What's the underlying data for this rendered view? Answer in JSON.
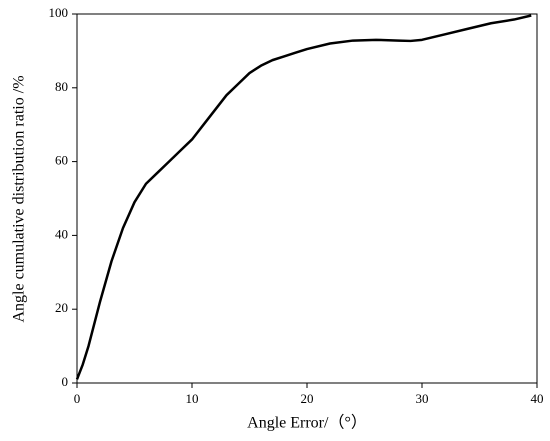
{
  "chart_data": {
    "type": "line",
    "x_label": "Angle Error/（°）",
    "y_label": "Angle cumulative distribution ratio /%",
    "x": [
      0,
      0.5,
      1,
      2,
      3,
      4,
      5,
      6,
      7,
      8,
      9,
      10,
      11,
      12,
      13,
      14,
      15,
      16,
      17,
      18,
      19,
      20,
      22,
      24,
      26,
      28,
      29,
      30,
      32,
      34,
      36,
      38,
      39.5
    ],
    "series": [
      {
        "color": "#000000",
        "values": [
          1,
          5,
          10,
          22,
          33,
          42,
          49,
          54,
          57,
          60,
          63,
          66,
          70,
          74,
          78,
          81,
          84,
          86,
          87.5,
          88.5,
          89.5,
          90.5,
          92,
          92.8,
          93,
          92.8,
          92.7,
          93,
          94.5,
          96,
          97.5,
          98.5,
          99.6
        ]
      }
    ],
    "xlim": [
      0,
      40
    ],
    "xticks": [
      0,
      10,
      20,
      30,
      40
    ],
    "ylim": [
      0,
      100
    ],
    "yticks": [
      0,
      20,
      40,
      60,
      80,
      100
    ]
  }
}
